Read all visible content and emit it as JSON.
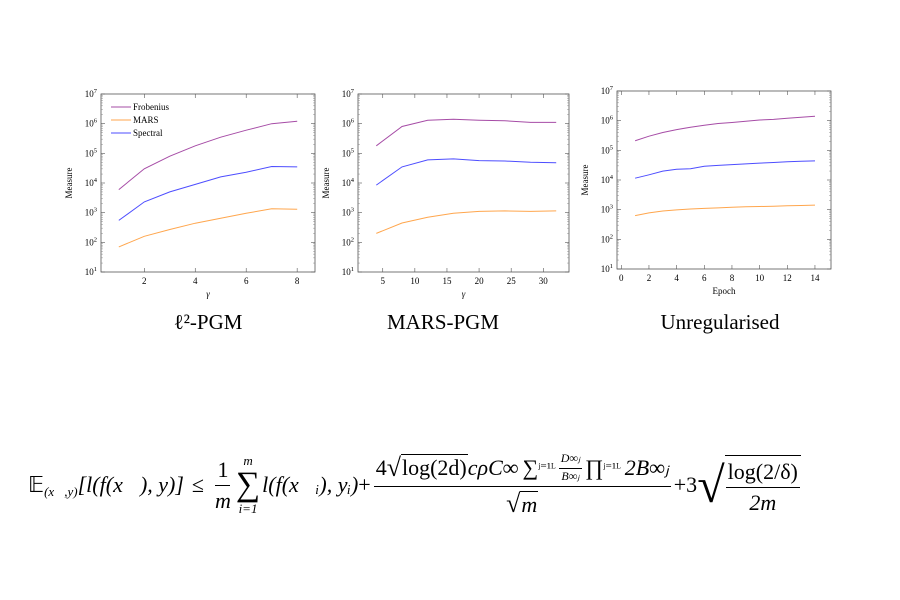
{
  "chart_data": [
    {
      "type": "line",
      "title": "ℓ²-PGM",
      "xlabel": "γ",
      "ylabel": "Measure",
      "yscale": "log",
      "ylim": [
        10,
        10000000
      ],
      "xlim": [
        0.3,
        8.7
      ],
      "xticks": [
        2,
        4,
        6,
        8
      ],
      "ytick_base": "10",
      "ytick_exponents": [
        1,
        2,
        3,
        4,
        5,
        6,
        7
      ],
      "legend": "top-left",
      "x": [
        1,
        2,
        3,
        4,
        5,
        6,
        7,
        8
      ],
      "series": [
        {
          "name": "Frobenius",
          "color": "#a64ca6",
          "values": [
            6000,
            30000,
            80000,
            180000,
            350000,
            600000,
            1000000,
            1200000
          ]
        },
        {
          "name": "MARS",
          "color": "#ffa64d",
          "values": [
            70,
            160,
            270,
            440,
            650,
            950,
            1350,
            1300
          ]
        },
        {
          "name": "Spectral",
          "color": "#4d4dff",
          "values": [
            550,
            2300,
            5000,
            9000,
            16000,
            23000,
            36000,
            35000
          ]
        }
      ]
    },
    {
      "type": "line",
      "title": "MARS-PGM",
      "xlabel": "γ",
      "ylabel": "Measure",
      "yscale": "log",
      "ylim": [
        10,
        10000000
      ],
      "xlim": [
        1.15,
        34
      ],
      "xticks": [
        5,
        10,
        15,
        20,
        25,
        30
      ],
      "ytick_base": "10",
      "ytick_exponents": [
        1,
        2,
        3,
        4,
        5,
        6,
        7
      ],
      "x": [
        4,
        8,
        12,
        16,
        20,
        24,
        28,
        32
      ],
      "series": [
        {
          "name": "Frobenius",
          "color": "#a64ca6",
          "values": [
            180000,
            800000,
            1300000,
            1400000,
            1300000,
            1250000,
            1100000,
            1100000
          ]
        },
        {
          "name": "MARS",
          "color": "#ffa64d",
          "values": [
            200,
            450,
            700,
            950,
            1100,
            1150,
            1100,
            1150
          ]
        },
        {
          "name": "Spectral",
          "color": "#4d4dff",
          "values": [
            8500,
            35000,
            60000,
            65000,
            57000,
            55000,
            50000,
            48000
          ]
        }
      ]
    },
    {
      "type": "line",
      "title": "Unregularised",
      "xlabel": "Epoch",
      "ylabel": "Measure",
      "yscale": "log",
      "ylim": [
        10,
        10000000
      ],
      "xlim": [
        -0.31,
        15.16
      ],
      "xticks": [
        0,
        2,
        4,
        6,
        8,
        10,
        12,
        14
      ],
      "ytick_base": "10",
      "ytick_exponents": [
        1,
        2,
        3,
        4,
        5,
        6,
        7
      ],
      "x": [
        1,
        2,
        3,
        4,
        5,
        6,
        7,
        8,
        9,
        10,
        11,
        12,
        13,
        14
      ],
      "series": [
        {
          "name": "Frobenius",
          "color": "#a64ca6",
          "values": [
            210000,
            300000,
            400000,
            500000,
            600000,
            700000,
            800000,
            870000,
            950000,
            1050000,
            1100000,
            1200000,
            1300000,
            1400000
          ]
        },
        {
          "name": "MARS",
          "color": "#ffa64d",
          "values": [
            630,
            780,
            900,
            980,
            1050,
            1100,
            1150,
            1200,
            1250,
            1280,
            1310,
            1350,
            1380,
            1420
          ]
        },
        {
          "name": "Spectral",
          "color": "#4d4dff",
          "values": [
            11500,
            15000,
            20000,
            23000,
            24000,
            29000,
            31000,
            33000,
            35000,
            37000,
            39000,
            41000,
            43000,
            44000
          ]
        }
      ]
    }
  ],
  "formula": {
    "lhs_E": "𝔼",
    "lhs_sub": "(x⃗,y)",
    "lhs_body": "[l(f(x⃗), y)]",
    "leq": "≤",
    "frac1_num": "1",
    "frac1_den": "m",
    "sum": "∑",
    "sum_top": "m",
    "sum_bot": "i=1",
    "sum_body": "l(f(x⃗ᵢ), yᵢ)",
    "plus1": "+",
    "big_num_4": "4",
    "big_num_log": "log(2d)",
    "big_num_mid": "cρC∞",
    "big_num_sum": "∑",
    "big_num_sum_lims": "ʲ⁼¹ᴸ",
    "small_frac_num": "D∞ⱼ",
    "small_frac_den": "B∞ⱼ",
    "big_num_prod": "∏",
    "big_num_prod_lims": "ʲ⁼¹ᴸ",
    "big_num_end": "2B∞ⱼ",
    "big_den": "m",
    "plus3": "+3",
    "last_num": "log(2/δ)",
    "last_den": "2m"
  }
}
